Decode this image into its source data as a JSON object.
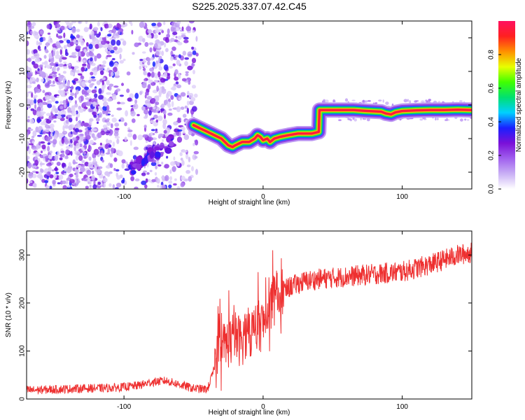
{
  "figure_title": "S225.2025.337.07.42.C45",
  "colorbar": {
    "label": "Normalized spectral amplitude",
    "ticks": [
      "0.0",
      "0.2",
      "0.4",
      "0.6",
      "0.8"
    ],
    "tick_values": [
      0.0,
      0.2,
      0.4,
      0.6,
      0.8
    ],
    "range": [
      0,
      1
    ],
    "colors": [
      "#ffffff",
      "#c9b0f5",
      "#a060ee",
      "#7a10d8",
      "#1a20ff",
      "#00d0ff",
      "#00e070",
      "#40ff00",
      "#e8ff00",
      "#ff9000",
      "#ff2020",
      "#ff1060"
    ]
  },
  "chart_data": [
    {
      "type": "heatmap",
      "title": "S225.2025.337.07.42.C45",
      "xlabel": "Height of straight line (km)",
      "ylabel": "Frequency (Hz)",
      "xlim": [
        -170,
        150
      ],
      "ylim": [
        -25,
        25
      ],
      "xticks": [
        -100,
        0,
        100
      ],
      "xtick_labels": [
        "-100",
        "0",
        "100"
      ],
      "yticks": [
        -20,
        -10,
        0,
        10,
        20
      ],
      "ytick_labels": [
        "-20",
        "-10",
        "0",
        "10",
        "20"
      ],
      "noise_region_x": [
        -170,
        -50
      ],
      "ridge": {
        "x": [
          -50,
          -45,
          -40,
          -35,
          -30,
          -25,
          -22,
          -20,
          -15,
          -10,
          -6,
          -4,
          -2,
          0,
          3,
          5,
          8,
          12,
          18,
          25,
          30,
          35,
          40,
          40.5,
          45,
          55,
          65,
          75,
          85,
          88,
          92,
          95,
          100,
          110,
          120,
          130,
          140,
          150
        ],
        "freq": [
          -6,
          -7,
          -8,
          -9,
          -10,
          -12,
          -12.5,
          -12,
          -11,
          -11,
          -10,
          -9,
          -9.5,
          -10.5,
          -10,
          -11,
          -10,
          -9.5,
          -9,
          -8.5,
          -8.5,
          -8.5,
          -8,
          -1.5,
          -1.5,
          -1.5,
          -1.5,
          -1.8,
          -2.0,
          -2.5,
          -2.8,
          -2.2,
          -1.8,
          -1.6,
          -1.5,
          -1.5,
          -1.4,
          -1.5
        ],
        "amplitude_core": 0.95
      },
      "blob_cluster": {
        "x_range": [
          -95,
          -65
        ],
        "freq_start": -19,
        "freq_end": -11,
        "amplitude": 0.3
      }
    },
    {
      "type": "line",
      "xlabel": "Height of straight line (km)",
      "ylabel": "SNR (10 * v/v)",
      "xlim": [
        -170,
        150
      ],
      "ylim": [
        0,
        350
      ],
      "xticks": [
        -100,
        0,
        100
      ],
      "xtick_labels": [
        "-100",
        "0",
        "100"
      ],
      "yticks": [
        0,
        100,
        200,
        300
      ],
      "ytick_labels": [
        "0",
        "100",
        "200",
        "300"
      ],
      "series": [
        {
          "name": "SNR",
          "color": "#ee3030",
          "x": [
            -170,
            -150,
            -130,
            -110,
            -100,
            -90,
            -80,
            -70,
            -60,
            -50,
            -40,
            -36,
            -32,
            -28,
            -24,
            -20,
            -16,
            -12,
            -8,
            -4,
            0,
            5,
            10,
            20,
            30,
            40,
            60,
            80,
            100,
            120,
            140,
            150
          ],
          "values": [
            18,
            20,
            22,
            23,
            25,
            28,
            35,
            38,
            30,
            22,
            20,
            55,
            90,
            110,
            120,
            130,
            120,
            135,
            140,
            150,
            155,
            190,
            215,
            235,
            245,
            250,
            255,
            260,
            265,
            280,
            300,
            305
          ]
        }
      ]
    }
  ]
}
